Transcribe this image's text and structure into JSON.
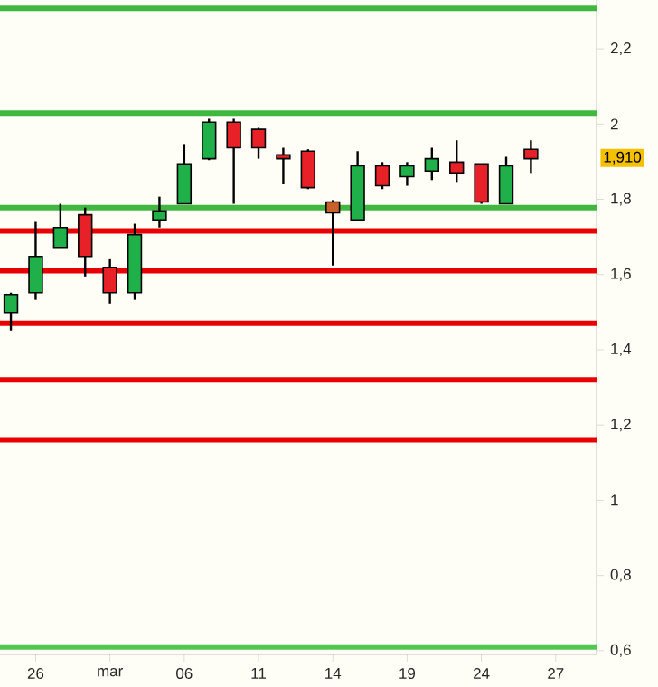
{
  "chart_data": {
    "type": "candlestick",
    "categories": [
      null,
      "26",
      null,
      null,
      "mar",
      null,
      null,
      "06",
      null,
      null,
      "11",
      null,
      null,
      "14",
      null,
      null,
      "19",
      null,
      null,
      "24",
      null,
      null,
      "27"
    ],
    "ohlc": [
      [
        1.499,
        1.552,
        1.451,
        1.547
      ],
      [
        1.552,
        1.74,
        1.533,
        1.648
      ],
      [
        1.672,
        1.788,
        1.672,
        1.725
      ],
      [
        1.759,
        1.778,
        1.595,
        1.648
      ],
      [
        1.619,
        1.643,
        1.523,
        1.552
      ],
      [
        1.552,
        1.735,
        1.533,
        1.706
      ],
      [
        1.745,
        1.807,
        1.725,
        1.769
      ],
      [
        1.788,
        1.947,
        1.788,
        1.894
      ],
      [
        1.908,
        2.014,
        1.904,
        2.005
      ],
      [
        2.005,
        2.014,
        1.788,
        1.937
      ],
      [
        1.986,
        1.99,
        1.908,
        1.937
      ],
      [
        1.918,
        1.937,
        1.841,
        1.908
      ],
      [
        1.928,
        1.933,
        1.827,
        1.831
      ],
      [
        1.793,
        1.798,
        1.624,
        1.764
      ],
      [
        1.745,
        1.928,
        1.745,
        1.889
      ],
      [
        1.889,
        1.899,
        1.827,
        1.836
      ],
      [
        1.86,
        1.899,
        1.836,
        1.889
      ],
      [
        1.875,
        1.937,
        1.851,
        1.908
      ],
      [
        1.899,
        1.957,
        1.846,
        1.87
      ],
      [
        1.894,
        1.894,
        1.788,
        1.793
      ],
      [
        1.788,
        1.913,
        1.788,
        1.889
      ],
      [
        1.933,
        1.957,
        1.87,
        1.908
      ],
      null
    ],
    "colors": [
      "#20b04a",
      "#20b04a",
      "#20b04a",
      "#e82028",
      "#e82028",
      "#20b04a",
      "#20b04a",
      "#20b04a",
      "#20b04a",
      "#e82028",
      "#e82028",
      "#e82028",
      "#e82028",
      "#c8602a",
      "#20b04a",
      "#e82028",
      "#20b04a",
      "#20b04a",
      "#e82028",
      "#e82028",
      "#20b04a",
      "#e82028",
      null
    ],
    "ylim": [
      0.59,
      2.33
    ],
    "yticks": [
      {
        "value": 0.6,
        "label": "0,6"
      },
      {
        "value": 0.8,
        "label": "0,8"
      },
      {
        "value": 1,
        "label": "1"
      },
      {
        "value": 1.2,
        "label": "1,2"
      },
      {
        "value": 1.4,
        "label": "1,4"
      },
      {
        "value": 1.6,
        "label": "1,6"
      },
      {
        "value": 1.8,
        "label": "1,8"
      },
      {
        "value": 2,
        "label": "2"
      },
      {
        "value": 2.2,
        "label": "2,2"
      }
    ],
    "ref_lines": [
      {
        "axis": "y",
        "value": 2.308,
        "color": "#40b840"
      },
      {
        "axis": "y",
        "value": 2.029,
        "color": "#40b840"
      },
      {
        "axis": "y",
        "value": 1.778,
        "color": "#40b840"
      },
      {
        "axis": "y",
        "value": 1.716,
        "color": "#e80000"
      },
      {
        "axis": "y",
        "value": 1.61,
        "color": "#e80000"
      },
      {
        "axis": "y",
        "value": 1.47,
        "color": "#e80000"
      },
      {
        "axis": "y",
        "value": 1.32,
        "color": "#e80000"
      },
      {
        "axis": "y",
        "value": 1.161,
        "color": "#e80000"
      },
      {
        "axis": "y",
        "value": 0.61,
        "color": "#50c850"
      }
    ],
    "annotations": [
      {
        "text": "1,910",
        "y": 1.91
      }
    ],
    "grid": false
  }
}
